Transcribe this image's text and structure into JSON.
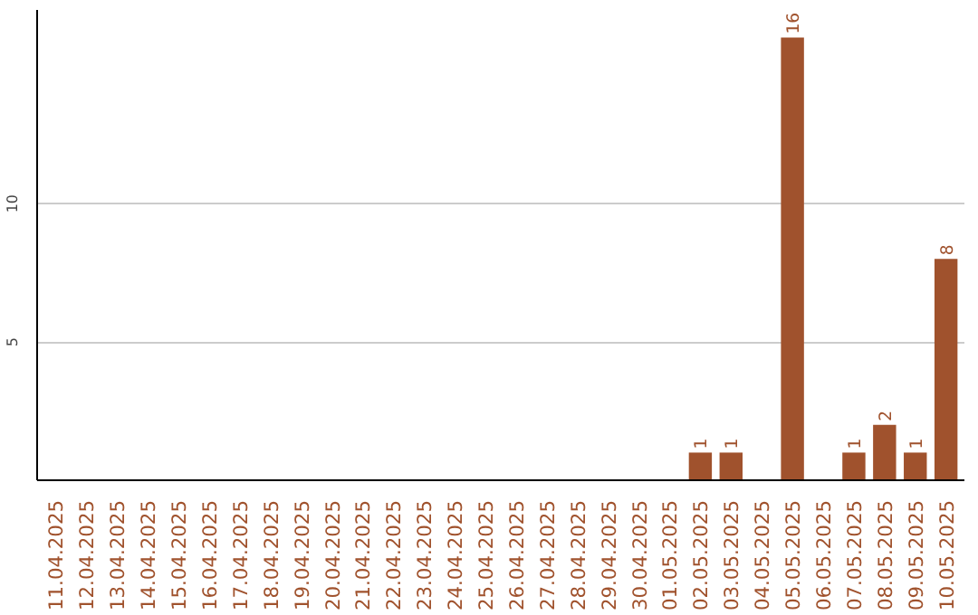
{
  "chart_data": {
    "type": "bar",
    "categories": [
      "11.04.2025",
      "12.04.2025",
      "13.04.2025",
      "14.04.2025",
      "15.04.2025",
      "16.04.2025",
      "17.04.2025",
      "18.04.2025",
      "19.04.2025",
      "20.04.2025",
      "21.04.2025",
      "22.04.2025",
      "23.04.2025",
      "24.04.2025",
      "25.04.2025",
      "26.04.2025",
      "27.04.2025",
      "28.04.2025",
      "29.04.2025",
      "30.04.2025",
      "01.05.2025",
      "02.05.2025",
      "03.05.2025",
      "04.05.2025",
      "05.05.2025",
      "06.05.2025",
      "07.05.2025",
      "08.05.2025",
      "09.05.2025",
      "10.05.2025"
    ],
    "values": [
      0,
      0,
      0,
      0,
      0,
      0,
      0,
      0,
      0,
      0,
      0,
      0,
      0,
      0,
      0,
      0,
      0,
      0,
      0,
      0,
      0,
      1,
      1,
      0,
      16,
      0,
      1,
      2,
      1,
      8
    ],
    "value_labels": [
      null,
      null,
      null,
      null,
      null,
      null,
      null,
      null,
      null,
      null,
      null,
      null,
      null,
      null,
      null,
      null,
      null,
      null,
      null,
      null,
      null,
      "1",
      "1",
      null,
      "16",
      null,
      "1",
      "2",
      "1",
      "8"
    ],
    "color": "#a0522d",
    "ylim": [
      0,
      17
    ],
    "yticks": [
      5,
      10
    ],
    "grid": "y"
  }
}
